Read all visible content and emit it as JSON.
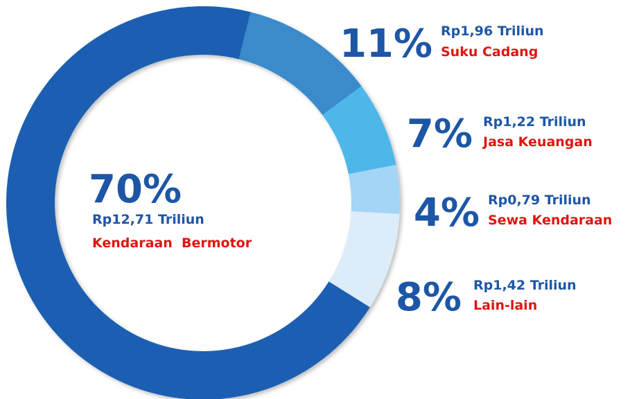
{
  "chart_data": {
    "type": "donut",
    "categories": [
      "Kendaraan  Bermotor",
      "Suku Cadang",
      "Jasa Keuangan",
      "Sewa Kendaraan",
      "Lain-lain"
    ],
    "values": [
      70,
      11,
      7,
      4,
      8
    ],
    "value_labels": [
      "70%",
      "11%",
      "7%",
      "4%",
      "8%"
    ],
    "amounts": [
      "Rp12,71 Triliun",
      "Rp1,96 Triliun",
      "Rp1,22 Triliun",
      "Rp0,79 Triliun",
      "Rp1,42 Triliun"
    ],
    "colors": [
      "#1a5fb2",
      "#3b8bcc",
      "#4db7e9",
      "#a3d5f6",
      "#dcedf9"
    ]
  }
}
